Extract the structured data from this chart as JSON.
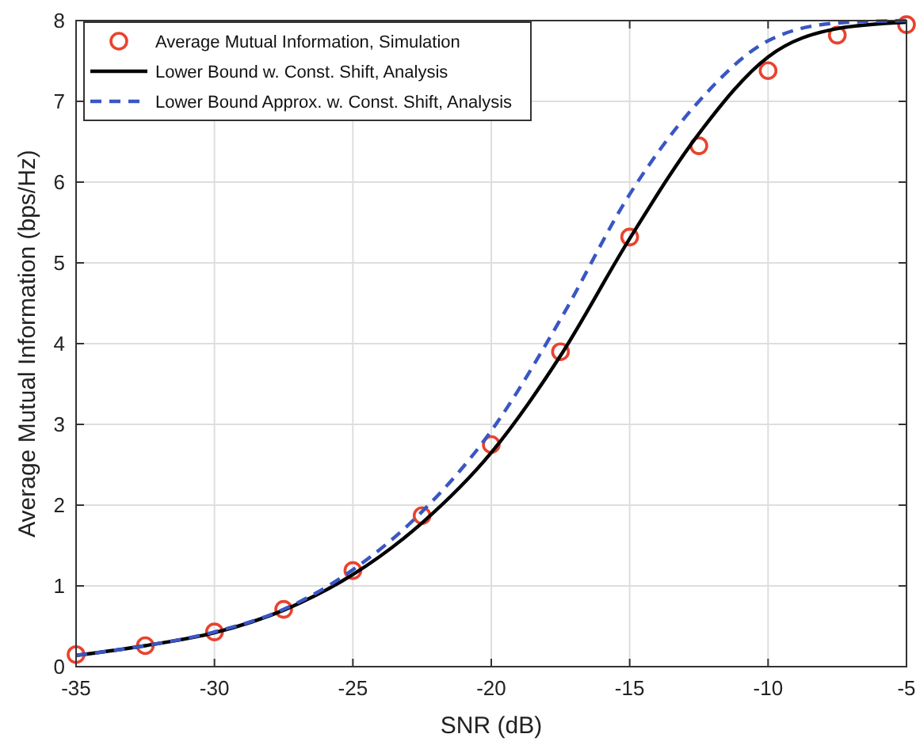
{
  "chart_data": {
    "type": "line",
    "xlabel": "SNR (dB)",
    "ylabel": "Average Mutual Information (bps/Hz)",
    "xlim": [
      -35,
      -5
    ],
    "ylim": [
      0,
      8
    ],
    "xticks": [
      -35,
      -30,
      -25,
      -20,
      -15,
      -10,
      -5
    ],
    "yticks": [
      0,
      1,
      2,
      3,
      4,
      5,
      6,
      7,
      8
    ],
    "grid": true,
    "legend": "top left",
    "x": [
      -35,
      -32.5,
      -30,
      -27.5,
      -25,
      -22.5,
      -20,
      -17.5,
      -15,
      -12.5,
      -10,
      -7.5,
      -5
    ],
    "series": [
      {
        "name": "Average Mutual Information, Simulation",
        "type": "scatter",
        "color": "#e8432e",
        "marker": "circle",
        "values": [
          0.15,
          0.26,
          0.43,
          0.71,
          1.19,
          1.87,
          2.75,
          3.9,
          5.32,
          6.45,
          7.38,
          7.82,
          7.95
        ]
      },
      {
        "name": "Lower Bound w. Const. Shift, Analysis",
        "color": "#000000",
        "line_style": "solid",
        "marker": "none",
        "values": [
          0.14,
          0.26,
          0.42,
          0.7,
          1.14,
          1.78,
          2.65,
          3.85,
          5.3,
          6.6,
          7.55,
          7.9,
          7.98
        ]
      },
      {
        "name": "Lower Bound Approx. w. Const. Shift, Analysis",
        "color": "#3a56c4",
        "line_style": "dashed",
        "marker": "none",
        "values": [
          0.14,
          0.26,
          0.43,
          0.71,
          1.2,
          1.92,
          2.92,
          4.3,
          5.85,
          7.0,
          7.75,
          7.97,
          8.0
        ]
      }
    ]
  }
}
